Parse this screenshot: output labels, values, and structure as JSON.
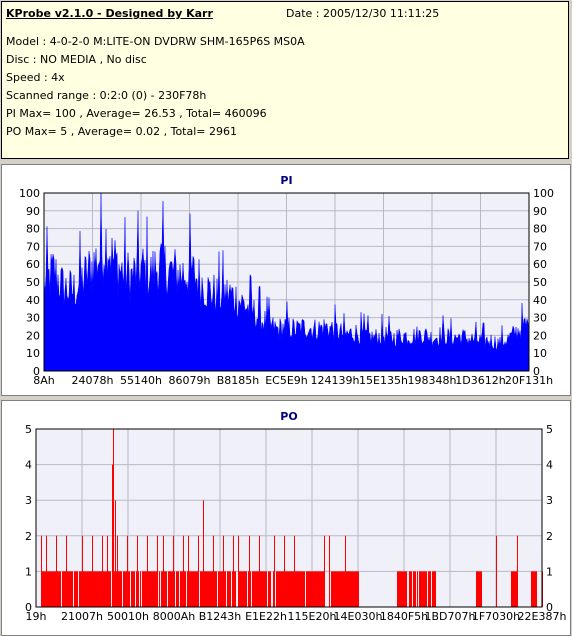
{
  "info": {
    "title": "KProbe v2.1.0 - Designed by Karr",
    "date": "Date : 2005/12/30 11:11:25",
    "model": "Model : 4-0-2-0 M:LITE-ON DVDRW SHM-165P6S MS0A",
    "disc": "Disc : NO MEDIA , No disc",
    "speed": "Speed : 4x",
    "range": "Scanned range : 0:2:0 (0) - 230F78h",
    "pi_summary": "PI Max= 100 , Average= 26.53 , Total= 460096",
    "po_summary": "PO Max= 5 , Average= 0.02 , Total= 2961"
  },
  "chart_data": [
    {
      "type": "area",
      "title": "PI",
      "color": "#0000ff",
      "ylim": [
        0,
        100
      ],
      "yticks": [
        0,
        10,
        20,
        30,
        40,
        50,
        60,
        70,
        80,
        90,
        100
      ],
      "xticks": [
        "8Ah",
        "24078h",
        "55140h",
        "86079h",
        "B8185h",
        "EC5E9h",
        "124139h",
        "15E135h",
        "198348h",
        "1D3612h",
        "20F131h"
      ],
      "grid": true,
      "envelope": [
        [
          0,
          62
        ],
        [
          2,
          72
        ],
        [
          4,
          60
        ],
        [
          6,
          58
        ],
        [
          8,
          66
        ],
        [
          10,
          76
        ],
        [
          12,
          86
        ],
        [
          13,
          96
        ],
        [
          14,
          82
        ],
        [
          16,
          72
        ],
        [
          18,
          68
        ],
        [
          20,
          74
        ],
        [
          22,
          70
        ],
        [
          24,
          78
        ],
        [
          26,
          72
        ],
        [
          28,
          70
        ],
        [
          30,
          72
        ],
        [
          32,
          66
        ],
        [
          34,
          58
        ],
        [
          36,
          54
        ],
        [
          38,
          56
        ],
        [
          40,
          52
        ],
        [
          42,
          46
        ],
        [
          44,
          40
        ],
        [
          46,
          34
        ],
        [
          48,
          30
        ],
        [
          50,
          32
        ],
        [
          52,
          30
        ],
        [
          54,
          32
        ],
        [
          56,
          30
        ],
        [
          58,
          32
        ],
        [
          60,
          30
        ],
        [
          62,
          26
        ],
        [
          64,
          28
        ],
        [
          66,
          26
        ],
        [
          68,
          24
        ],
        [
          70,
          26
        ],
        [
          72,
          24
        ],
        [
          74,
          26
        ],
        [
          76,
          25
        ],
        [
          78,
          27
        ],
        [
          80,
          24
        ],
        [
          82,
          26
        ],
        [
          84,
          24
        ],
        [
          86,
          25
        ],
        [
          88,
          23
        ],
        [
          90,
          22
        ],
        [
          92,
          22
        ],
        [
          94,
          20
        ],
        [
          96,
          24
        ],
        [
          98,
          30
        ],
        [
          100,
          34
        ]
      ]
    },
    {
      "type": "bar",
      "title": "PO",
      "color": "#ff0000",
      "ylim": [
        0,
        5
      ],
      "yticks": [
        0,
        1,
        2,
        3,
        4,
        5
      ],
      "xticks": [
        "19h",
        "21007h",
        "50010h",
        "8000Ah",
        "B1243h",
        "E1E22h",
        "115E20h",
        "14E030h",
        "1840F5h",
        "1BD707h",
        "1F7030h",
        "22E387h"
      ],
      "grid": true,
      "ones": [
        [
          1,
          57
        ],
        [
          58,
          64
        ],
        [
          71,
          79
        ],
        [
          87,
          88
        ],
        [
          94,
          95
        ],
        [
          98,
          99
        ],
        [
          100,
          100
        ]
      ],
      "spikes": [
        [
          1,
          2
        ],
        [
          2,
          2
        ],
        [
          4,
          2
        ],
        [
          6,
          2
        ],
        [
          9,
          2
        ],
        [
          11,
          2
        ],
        [
          13,
          2
        ],
        [
          14,
          2
        ],
        [
          15,
          4
        ],
        [
          15.3,
          5
        ],
        [
          15.7,
          3
        ],
        [
          16,
          2
        ],
        [
          18,
          2
        ],
        [
          20,
          2
        ],
        [
          22,
          2
        ],
        [
          24,
          2
        ],
        [
          25,
          2
        ],
        [
          27,
          2
        ],
        [
          29,
          2
        ],
        [
          30,
          2
        ],
        [
          32,
          2
        ],
        [
          33,
          3
        ],
        [
          35,
          2
        ],
        [
          37,
          2
        ],
        [
          39,
          2
        ],
        [
          40,
          2
        ],
        [
          42,
          2
        ],
        [
          44,
          2
        ],
        [
          47,
          2
        ],
        [
          49,
          2
        ],
        [
          51,
          2
        ],
        [
          57,
          2
        ],
        [
          58,
          2
        ],
        [
          61,
          2
        ],
        [
          91,
          2
        ],
        [
          95,
          2
        ]
      ]
    }
  ]
}
